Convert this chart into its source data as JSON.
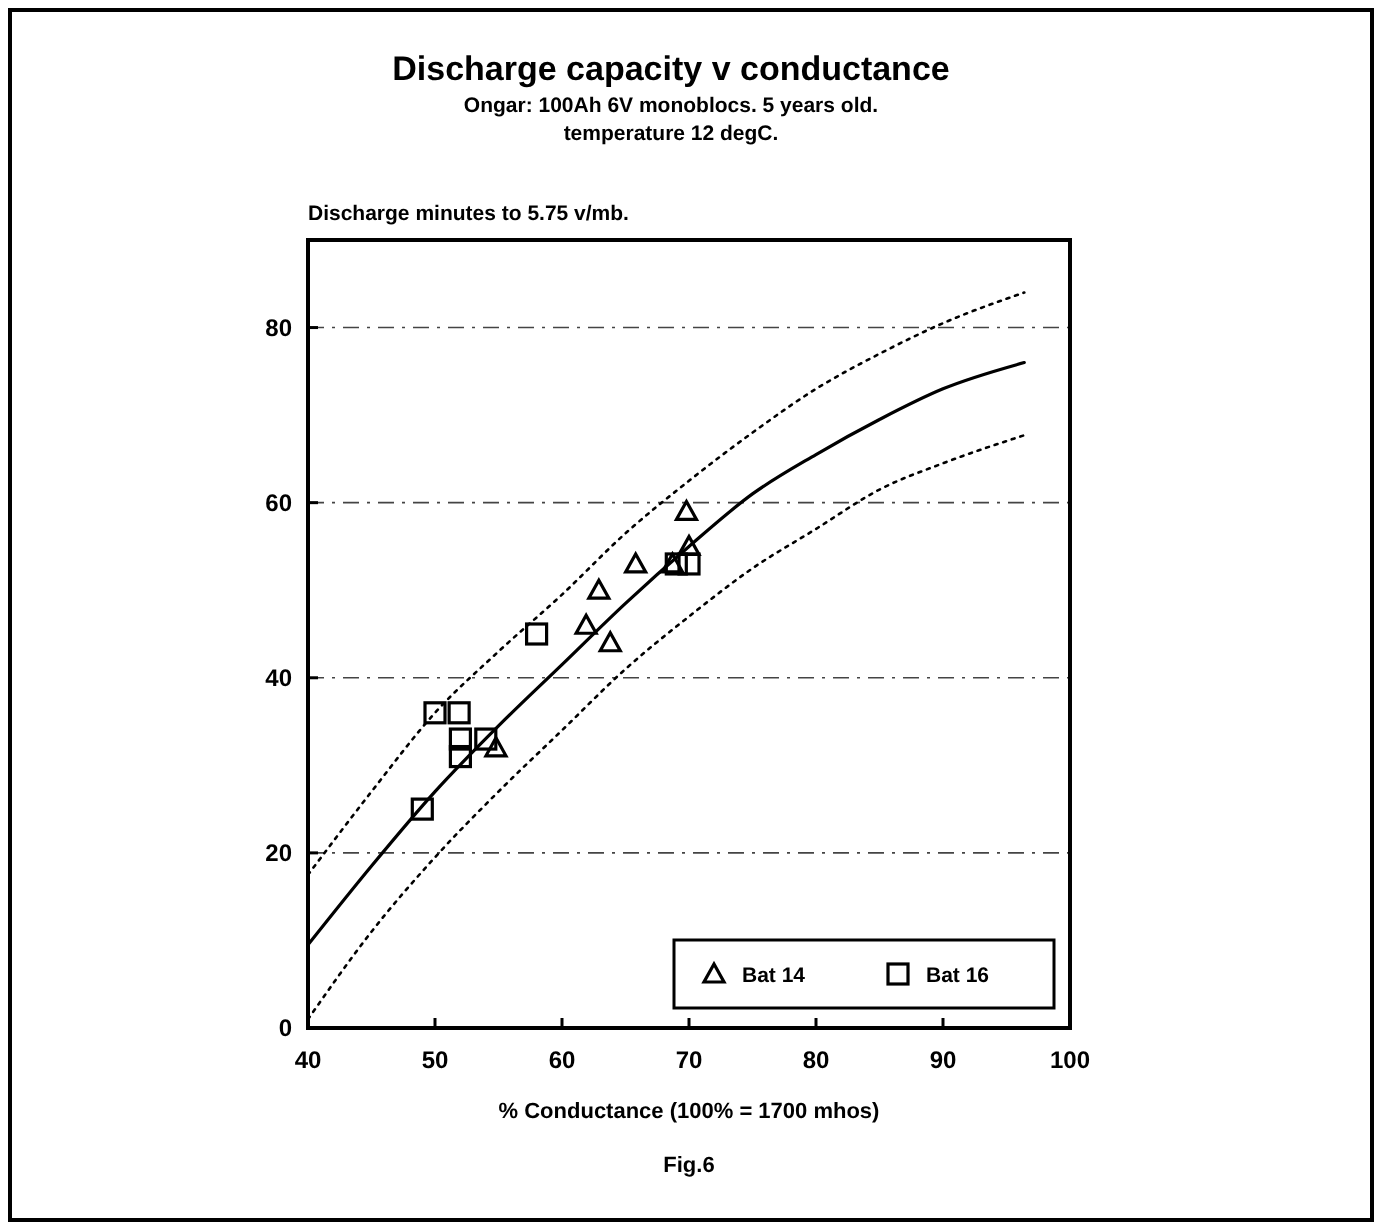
{
  "chart_data": {
    "type": "scatter",
    "title": "Discharge capacity v conductance",
    "subtitle": "Ongar: 100Ah 6V monoblocs. 5 years old.\ntemperature 12 degC.",
    "ylabel": "Discharge minutes to 5.75 v/mb.",
    "xlabel": "% Conductance (100% = 1700 mhos)",
    "annotations": [
      "Fig.6"
    ],
    "xlim": [
      40,
      100
    ],
    "xticks": [
      40,
      50,
      60,
      70,
      80,
      90,
      100
    ],
    "ylim": [
      0,
      90
    ],
    "yticks": [
      0,
      20,
      40,
      60,
      80
    ],
    "grid": "y",
    "legend": "bottom right",
    "series": [
      {
        "name": "Bat 14",
        "color": "#000000",
        "marker": "triangle",
        "x": [
          69.8,
          65.8,
          62.9,
          61.9,
          63.8,
          70,
          68.7,
          54.8
        ],
        "values": [
          59,
          53,
          50,
          46,
          44,
          55,
          53,
          32
        ]
      },
      {
        "name": "Bat 16",
        "color": "#000000",
        "marker": "square",
        "x": [
          49,
          50,
          51.9,
          52,
          52,
          54,
          58,
          70,
          69
        ],
        "values": [
          25,
          36,
          36,
          33,
          31,
          33,
          45,
          53,
          53
        ]
      },
      {
        "type": "line",
        "color": "#000000",
        "line_style": "solid",
        "x": [
          40,
          45,
          50,
          55,
          60,
          65,
          70,
          75,
          80,
          85,
          90,
          96.4
        ],
        "values": [
          9.5,
          18.5,
          27,
          34.5,
          41.5,
          48.5,
          55,
          61,
          65.5,
          69.5,
          73,
          76
        ]
      },
      {
        "type": "line",
        "color": "#000000",
        "line_style": "dotted",
        "x": [
          40,
          45,
          50,
          55,
          60,
          65,
          70,
          75,
          80,
          85,
          90,
          96.4
        ],
        "values": [
          17.5,
          27,
          36,
          43,
          49.5,
          56.5,
          62.5,
          68,
          73,
          77,
          80.5,
          84
        ]
      },
      {
        "type": "line",
        "color": "#000000",
        "line_style": "dotted",
        "x": [
          40,
          45,
          50,
          55,
          60,
          65,
          70,
          75,
          80,
          85,
          90,
          96.4
        ],
        "values": [
          1,
          11,
          19.5,
          27,
          34,
          41,
          47,
          52.5,
          57,
          61.5,
          64.5,
          67.7
        ]
      }
    ]
  }
}
